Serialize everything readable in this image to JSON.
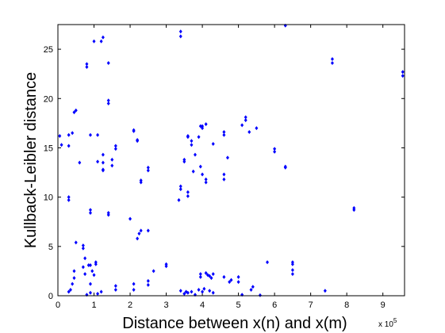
{
  "chart_data": {
    "type": "scatter",
    "title": "",
    "xlabel": "Distance between x(n) and x(m)",
    "ylabel": "Kullback-Leibler distance",
    "x_exponent_label": "x 10",
    "x_exponent_power": "5",
    "x_scale": 100000,
    "xlim": [
      0,
      9.6
    ],
    "ylim": [
      0,
      27.5
    ],
    "xticks": [
      "0",
      "1",
      "2",
      "3",
      "4",
      "5",
      "6",
      "7",
      "8",
      "9"
    ],
    "yticks": [
      "0",
      "5",
      "10",
      "15",
      "20",
      "25"
    ],
    "grid": false,
    "marker_color": "#0000ff",
    "points": [
      [
        0.05,
        16.2
      ],
      [
        0.1,
        15.3
      ],
      [
        0.3,
        15.2
      ],
      [
        0.3,
        16.3
      ],
      [
        0.4,
        16.5
      ],
      [
        0.45,
        18.6
      ],
      [
        0.5,
        18.8
      ],
      [
        0.3,
        10
      ],
      [
        0.3,
        9.7
      ],
      [
        0.6,
        13.5
      ],
      [
        0.8,
        23.2
      ],
      [
        0.8,
        23.5
      ],
      [
        1.0,
        25.8
      ],
      [
        1.2,
        25.8
      ],
      [
        1.25,
        26.2
      ],
      [
        1.4,
        23.6
      ],
      [
        1.4,
        19.8
      ],
      [
        1.4,
        19.5
      ],
      [
        0.9,
        16.3
      ],
      [
        1.1,
        16.3
      ],
      [
        1.1,
        13.6
      ],
      [
        1.25,
        13.5
      ],
      [
        1.25,
        14.3
      ],
      [
        1.5,
        13.8
      ],
      [
        1.5,
        13.2
      ],
      [
        1.6,
        15.2
      ],
      [
        1.6,
        14.9
      ],
      [
        1.25,
        12.7
      ],
      [
        1.25,
        12.8
      ],
      [
        0.9,
        8.7
      ],
      [
        0.9,
        8.4
      ],
      [
        1.4,
        8.4
      ],
      [
        1.4,
        8.2
      ],
      [
        2.0,
        7.8
      ],
      [
        2.1,
        16.7
      ],
      [
        2.1,
        16.8
      ],
      [
        2.2,
        15.8
      ],
      [
        2.2,
        15.7
      ],
      [
        2.3,
        11.7
      ],
      [
        2.3,
        11.5
      ],
      [
        2.5,
        13.0
      ],
      [
        2.5,
        12.7
      ],
      [
        2.2,
        5.8
      ],
      [
        2.25,
        6.3
      ],
      [
        2.3,
        6.6
      ],
      [
        2.5,
        6.6
      ],
      [
        3.4,
        26.8
      ],
      [
        3.4,
        26.3
      ],
      [
        3.5,
        13.8
      ],
      [
        3.5,
        13.6
      ],
      [
        3.6,
        16.2
      ],
      [
        3.6,
        16.1
      ],
      [
        3.7,
        15.7
      ],
      [
        3.7,
        15.3
      ],
      [
        3.9,
        16.1
      ],
      [
        3.95,
        17.2
      ],
      [
        4.0,
        17.2
      ],
      [
        4.1,
        17.4
      ],
      [
        4.0,
        17.0
      ],
      [
        4.3,
        15.4
      ],
      [
        3.8,
        14.3
      ],
      [
        3.75,
        12.6
      ],
      [
        3.95,
        13.1
      ],
      [
        4.0,
        12.3
      ],
      [
        4.1,
        11.8
      ],
      [
        4.1,
        11.5
      ],
      [
        3.4,
        11.1
      ],
      [
        3.4,
        10.8
      ],
      [
        3.35,
        9.7
      ],
      [
        3.6,
        10.5
      ],
      [
        3.6,
        10.1
      ],
      [
        4.6,
        16.3
      ],
      [
        4.6,
        16.6
      ],
      [
        4.7,
        14.0
      ],
      [
        4.6,
        12.3
      ],
      [
        4.6,
        11.8
      ],
      [
        5.1,
        17.3
      ],
      [
        5.2,
        17.8
      ],
      [
        5.2,
        18.1
      ],
      [
        5.3,
        16.6
      ],
      [
        5.5,
        17.0
      ],
      [
        6.0,
        14.9
      ],
      [
        6.0,
        14.6
      ],
      [
        6.3,
        13.1
      ],
      [
        6.3,
        13.0
      ],
      [
        6.3,
        27.4
      ],
      [
        7.6,
        24.0
      ],
      [
        7.6,
        23.6
      ],
      [
        8.2,
        8.9
      ],
      [
        8.2,
        8.7
      ],
      [
        9.55,
        22.7
      ],
      [
        9.55,
        22.3
      ],
      [
        0.3,
        0.4
      ],
      [
        0.35,
        0.6
      ],
      [
        0.4,
        1.2
      ],
      [
        0.45,
        1.8
      ],
      [
        0.45,
        2.5
      ],
      [
        0.5,
        5.4
      ],
      [
        0.7,
        5.1
      ],
      [
        0.7,
        4.8
      ],
      [
        0.75,
        3.8
      ],
      [
        0.7,
        2.9
      ],
      [
        0.75,
        2.2
      ],
      [
        0.8,
        0.1
      ],
      [
        0.9,
        0.3
      ],
      [
        0.9,
        1.2
      ],
      [
        0.9,
        3.1
      ],
      [
        1.05,
        3.4
      ],
      [
        1.05,
        3.2
      ],
      [
        0.95,
        2.5
      ],
      [
        1.0,
        2.1
      ],
      [
        0.85,
        3.1
      ],
      [
        1.6,
        1.0
      ],
      [
        1.6,
        0.6
      ],
      [
        2.1,
        1.2
      ],
      [
        2.1,
        0.6
      ],
      [
        2.5,
        1.5
      ],
      [
        2.5,
        1.1
      ],
      [
        2.65,
        2.5
      ],
      [
        3.0,
        3.2
      ],
      [
        3.0,
        3.0
      ],
      [
        3.4,
        0.5
      ],
      [
        3.5,
        0.2
      ],
      [
        3.55,
        0.4
      ],
      [
        3.6,
        0.3
      ],
      [
        3.7,
        0.4
      ],
      [
        3.8,
        0.1
      ],
      [
        3.9,
        0.6
      ],
      [
        3.95,
        1.9
      ],
      [
        3.95,
        2.2
      ],
      [
        4.1,
        2.3
      ],
      [
        4.15,
        2.1
      ],
      [
        4.2,
        2.0
      ],
      [
        4.25,
        1.8
      ],
      [
        4.3,
        2.2
      ],
      [
        4.0,
        0.4
      ],
      [
        4.05,
        0.7
      ],
      [
        4.2,
        0.5
      ],
      [
        4.3,
        0.3
      ],
      [
        4.6,
        1.9
      ],
      [
        4.75,
        1.4
      ],
      [
        4.8,
        1.6
      ],
      [
        5.0,
        1.4
      ],
      [
        5.0,
        1.9
      ],
      [
        5.1,
        0.1
      ],
      [
        5.35,
        0.6
      ],
      [
        5.4,
        0.9
      ],
      [
        5.6,
        0.05
      ],
      [
        5.8,
        3.4
      ],
      [
        6.5,
        3.2
      ],
      [
        6.5,
        3.4
      ],
      [
        6.5,
        2.6
      ],
      [
        6.5,
        2.2
      ],
      [
        7.4,
        0.5
      ],
      [
        1.1,
        0.2
      ],
      [
        1.2,
        0.4
      ]
    ]
  }
}
